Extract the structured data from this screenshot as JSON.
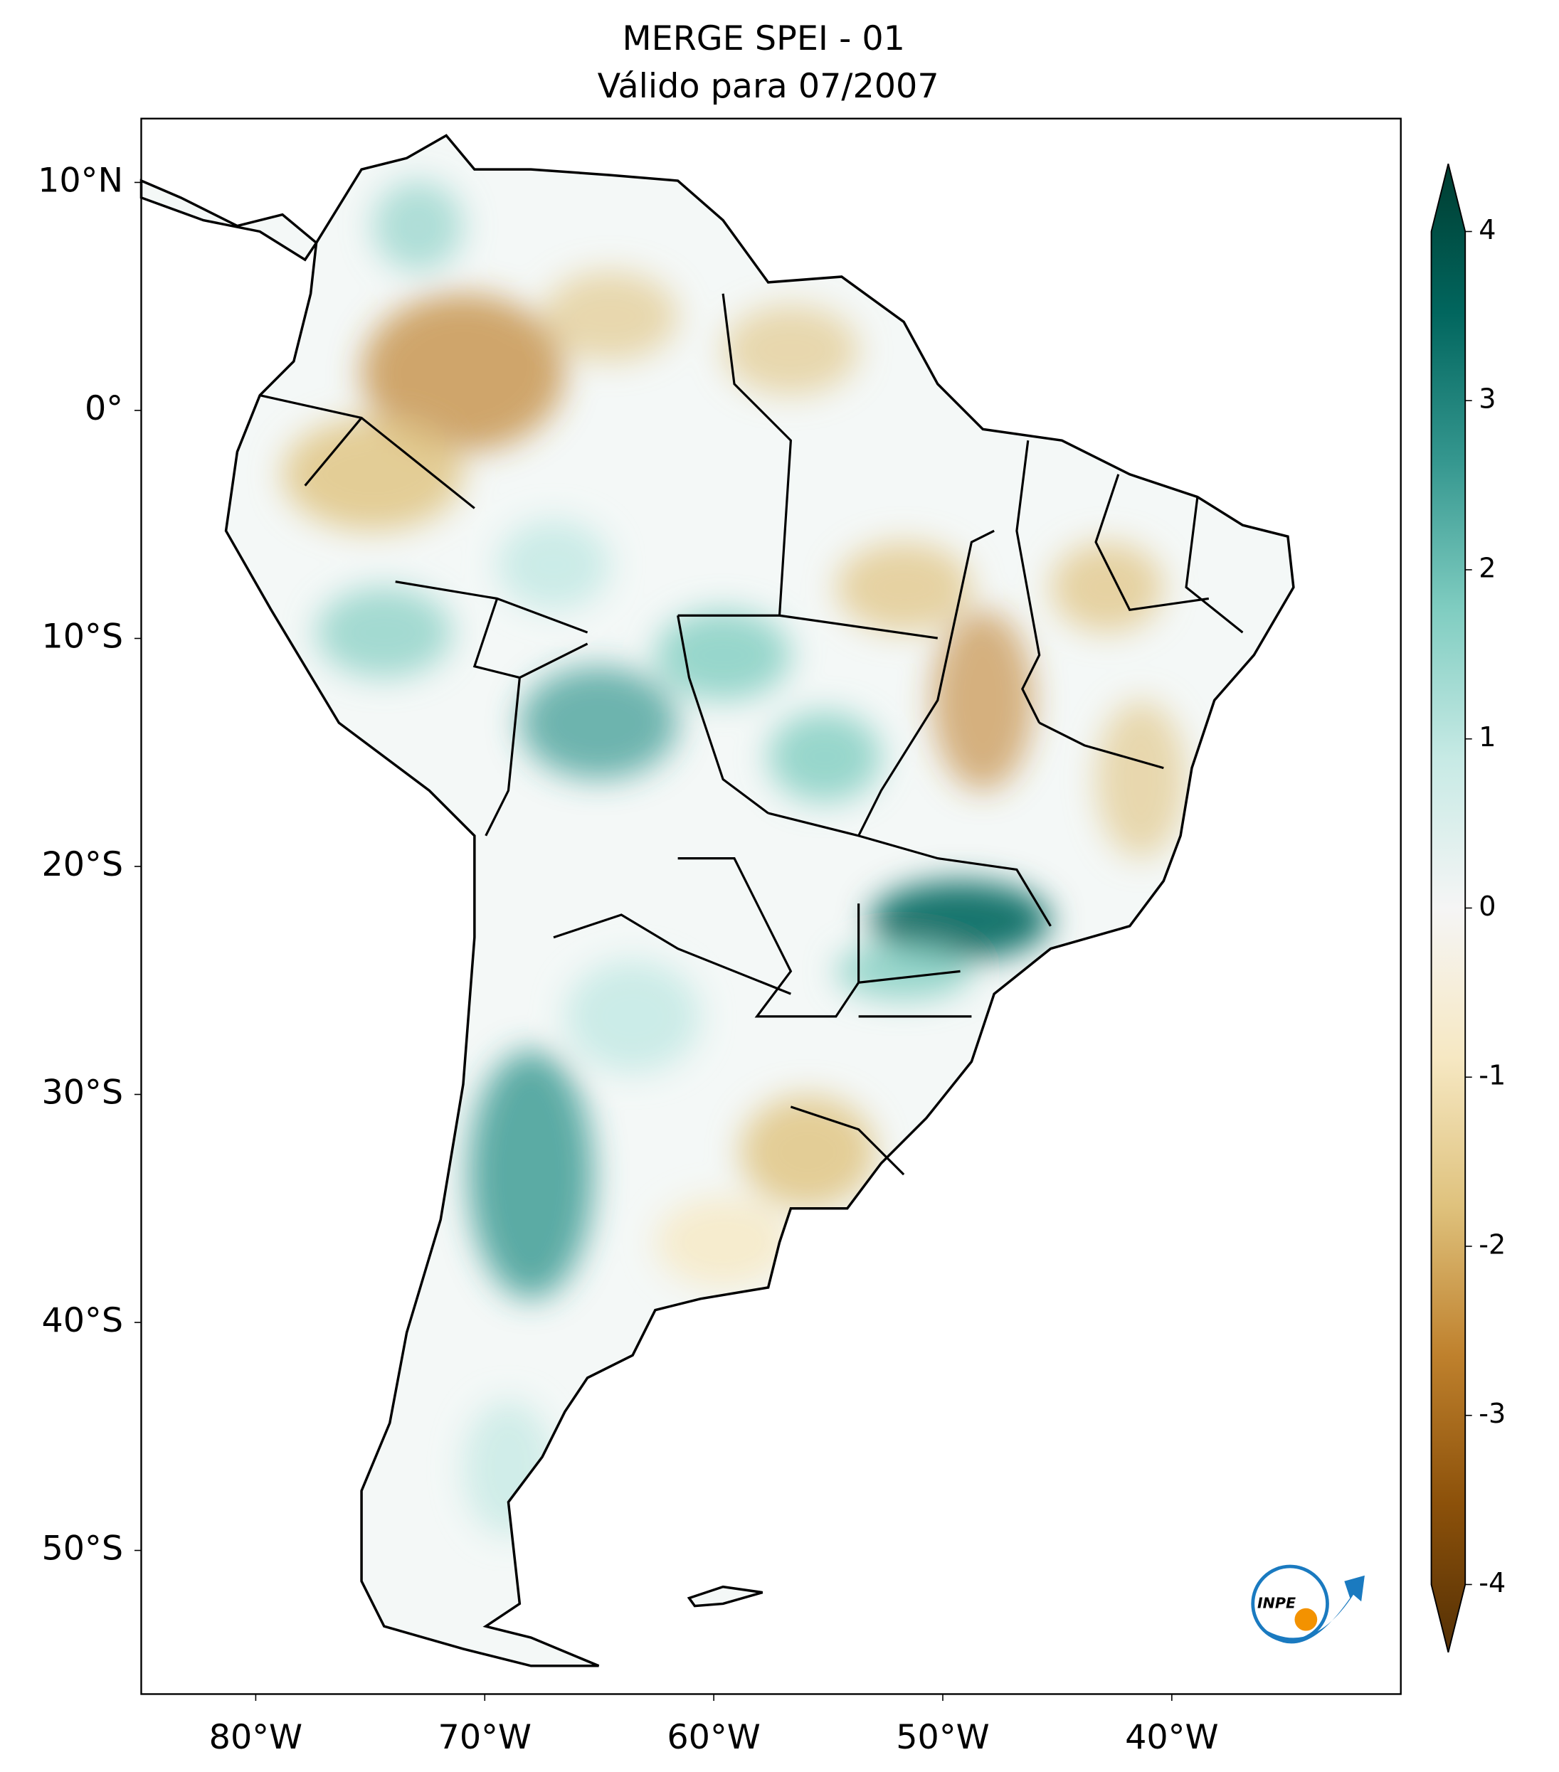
{
  "map": {
    "title": "MERGE   SPEI - 01",
    "subtitle": "Válido para 07/2007",
    "xlim": [
      -85,
      -30
    ],
    "ylim": [
      -56.3,
      12.8
    ],
    "xticks": [
      {
        "value": -80,
        "label": "80°W"
      },
      {
        "value": -70,
        "label": "70°W"
      },
      {
        "value": -60,
        "label": "60°W"
      },
      {
        "value": -50,
        "label": "50°W"
      },
      {
        "value": -40,
        "label": "40°W"
      }
    ],
    "yticks": [
      {
        "value": 10,
        "label": "10°N"
      },
      {
        "value": 0,
        "label": "0°"
      },
      {
        "value": -10,
        "label": "10°S"
      },
      {
        "value": -20,
        "label": "20°S"
      },
      {
        "value": -30,
        "label": "30°S"
      },
      {
        "value": -40,
        "label": "40°S"
      },
      {
        "value": -50,
        "label": "50°S"
      }
    ],
    "colorbar": {
      "lim": [
        -4,
        4
      ],
      "ticks": [
        4,
        3,
        2,
        1,
        0,
        -1,
        -2,
        -3,
        -4
      ],
      "colors": [
        "#543005",
        "#8c510a",
        "#bf812d",
        "#dfc27d",
        "#f6e8c3",
        "#f5f5f5",
        "#c7eae5",
        "#80cdc1",
        "#35978f",
        "#01665e",
        "#003c30"
      ]
    },
    "logo": "INPE"
  }
}
